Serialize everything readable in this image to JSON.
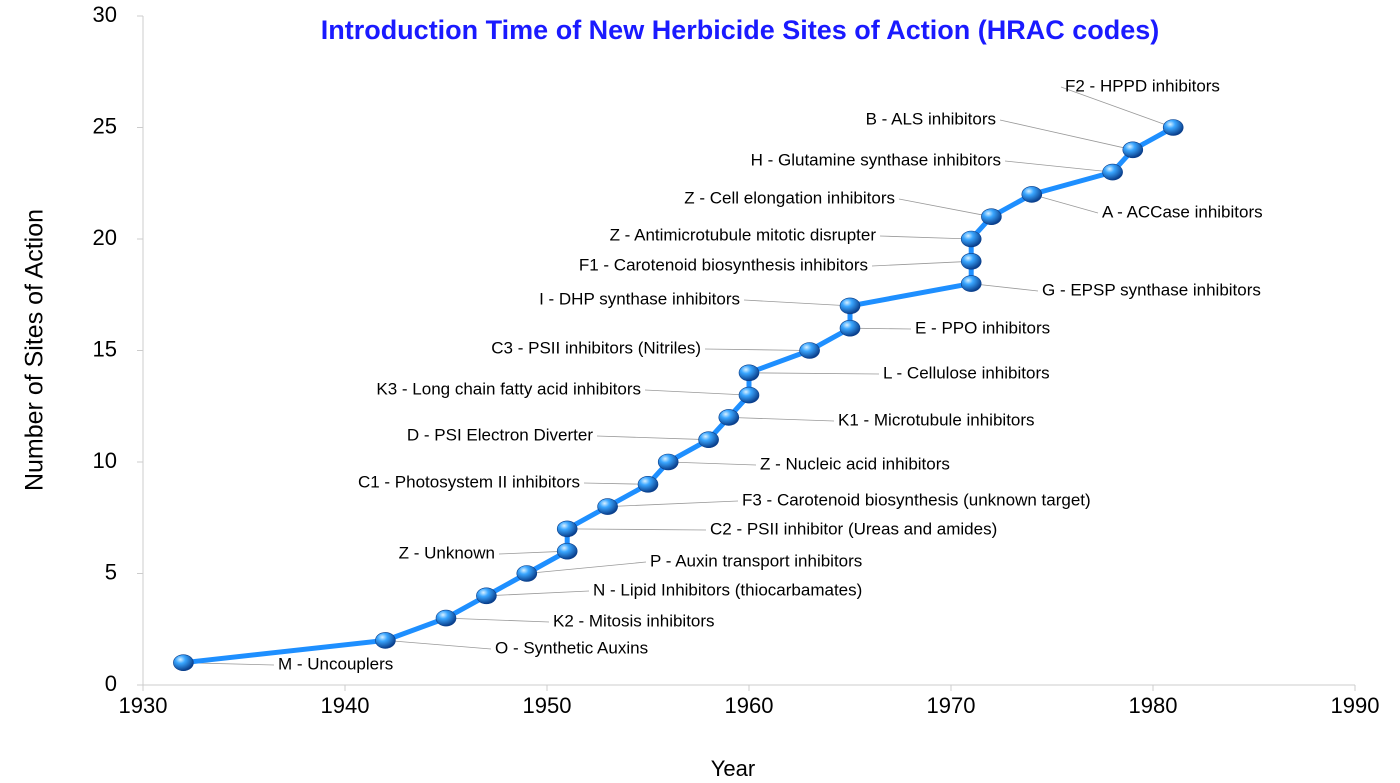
{
  "chart_data": {
    "type": "line",
    "title": "Introduction Time of New Herbicide Sites of Action (HRAC codes)",
    "x_label": "Year",
    "y_label": "Number of Sites of Action",
    "x": [
      1932,
      1942,
      1945,
      1947,
      1949,
      1951,
      1951,
      1953,
      1955,
      1956,
      1958,
      1959,
      1960,
      1960,
      1963,
      1965,
      1965,
      1971,
      1971,
      1971,
      1972,
      1974,
      1978,
      1979,
      1981
    ],
    "values": [
      1,
      2,
      3,
      4,
      5,
      6,
      7,
      8,
      9,
      10,
      11,
      12,
      13,
      14,
      15,
      16,
      17,
      18,
      19,
      20,
      21,
      22,
      23,
      24,
      25
    ],
    "color": "#1e8fff",
    "annotations": [
      "M - Uncouplers",
      "O - Synthetic Auxins",
      "K2 - Mitosis inhibitors",
      "N - Lipid Inhibitors (thiocarbamates)",
      "P - Auxin transport inhibitors",
      "Z - Unknown",
      "C2 - PSII inhibitor (Ureas and amides)",
      "F3 - Carotenoid biosynthesis (unknown target)",
      "C1 - Photosystem II inhibitors",
      "Z - Nucleic acid inhibitors",
      "D - PSI Electron Diverter",
      "K1 - Microtubule inhibitors",
      "K3 - Long chain fatty acid inhibitors",
      "L - Cellulose inhibitors",
      "C3 - PSII inhibitors (Nitriles)",
      "E - PPO inhibitors",
      "I - DHP synthase inhibitors",
      "G - EPSP synthase inhibitors",
      "F1 - Carotenoid biosynthesis inhibitors",
      "Z - Antimicrotubule mitotic disrupter",
      "Z - Cell elongation inhibitors",
      "A - ACCase inhibitors",
      "H - Glutamine synthase inhibitors",
      "B - ALS inhibitors",
      "F2 - HPPD inhibitors"
    ],
    "xlim": [
      1930,
      1990
    ],
    "xticks": [
      1930,
      1940,
      1950,
      1960,
      1970,
      1980,
      1990
    ],
    "ylim": [
      0,
      30
    ],
    "yticks": [
      0,
      5,
      10,
      15,
      20,
      25,
      30
    ],
    "grid": false
  }
}
